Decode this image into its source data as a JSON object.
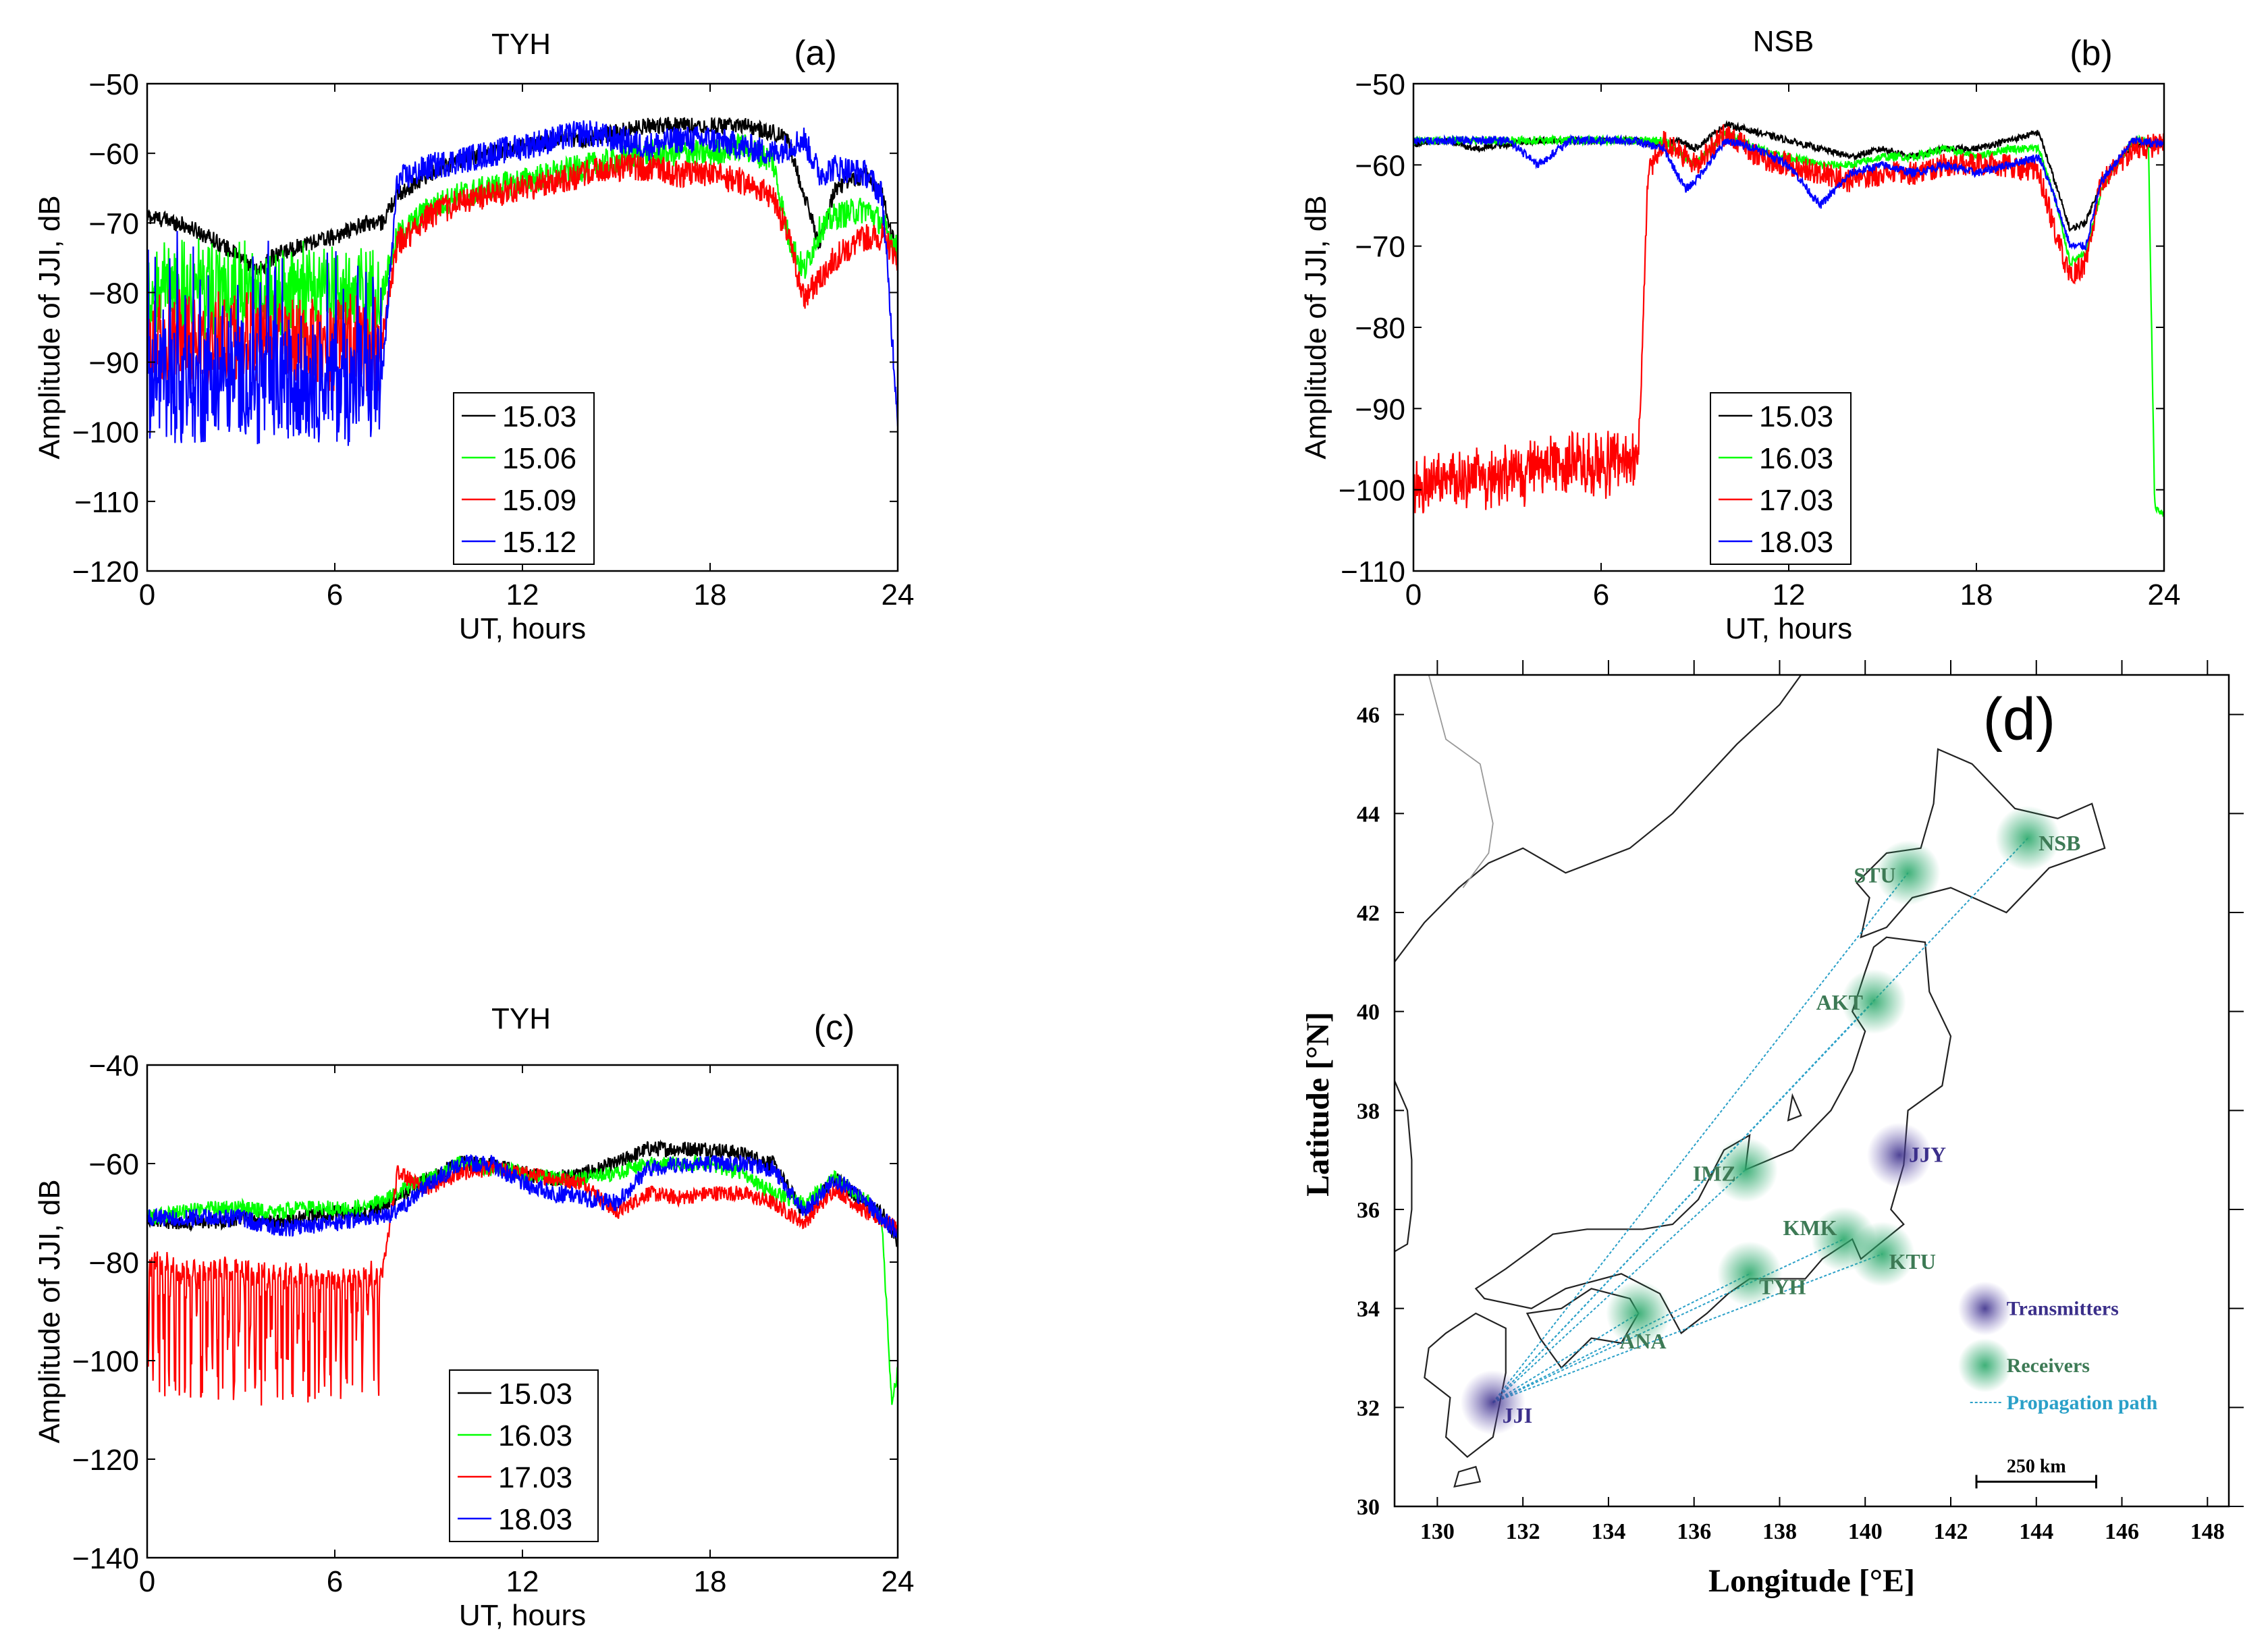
{
  "chart_data": [
    {
      "id": "a",
      "type": "line",
      "panel_label": "(a)",
      "title": "TYH",
      "xlabel": "UT, hours",
      "ylabel": "Amplitude of JJI, dB",
      "xlim": [
        0,
        24
      ],
      "ylim": [
        -120,
        -50
      ],
      "xticks": [
        0,
        6,
        12,
        18,
        24
      ],
      "yticks": [
        -50,
        -60,
        -70,
        -80,
        -90,
        -100,
        -110,
        -120
      ],
      "legend_position": "bottom-center",
      "series": [
        {
          "name": "15.03",
          "color": "#000000",
          "x": [
            0,
            1,
            2,
            3,
            3.5,
            4,
            5,
            6,
            7,
            7.5,
            8,
            9,
            10,
            11,
            12,
            13,
            14,
            15,
            16,
            17,
            18,
            19,
            20,
            20.5,
            21,
            21.5,
            22,
            23,
            23.5,
            24
          ],
          "y": [
            -69,
            -70,
            -72,
            -75,
            -77,
            -75,
            -73,
            -72,
            -70,
            -70,
            -66,
            -63,
            -61,
            -60,
            -59,
            -58,
            -58,
            -57,
            -56,
            -56,
            -56,
            -56,
            -57,
            -58,
            -66,
            -73,
            -65,
            -63,
            -66,
            -75
          ]
        },
        {
          "name": "15.06",
          "color": "#00ff00",
          "x": [
            0,
            7.5,
            8,
            9,
            10,
            11,
            12,
            13,
            14,
            15,
            16,
            17,
            18,
            19,
            20,
            20.5,
            21,
            21.5,
            22,
            23,
            23.5,
            24
          ],
          "y": [
            -80,
            -80,
            -72,
            -68,
            -66,
            -65,
            -64,
            -63,
            -62,
            -61,
            -60,
            -60,
            -60,
            -59,
            -61,
            -72,
            -77,
            -71,
            -69,
            -68,
            -70,
            -74
          ]
        },
        {
          "name": "15.09",
          "color": "#ff0000",
          "x": [
            0,
            7.5,
            8,
            9,
            10,
            11,
            12,
            13,
            14,
            15,
            16,
            17,
            18,
            19,
            20,
            20.5,
            21,
            21.5,
            22,
            23,
            23.5,
            24
          ],
          "y": [
            -87,
            -87,
            -73,
            -69,
            -67,
            -66,
            -65,
            -64,
            -63,
            -62,
            -62,
            -63,
            -63,
            -64,
            -66,
            -72,
            -81,
            -78,
            -75,
            -72,
            -72,
            -75
          ]
        },
        {
          "name": "15.12",
          "color": "#0000ff",
          "x": [
            0,
            7.5,
            8,
            9,
            10,
            11,
            12,
            13,
            14,
            15,
            16,
            17,
            18,
            19,
            20,
            21,
            21.5,
            22,
            23,
            23.5,
            24
          ],
          "y": [
            -93,
            -93,
            -64,
            -62,
            -61,
            -60,
            -59,
            -58,
            -57,
            -58,
            -59,
            -58,
            -58,
            -59,
            -60,
            -58,
            -63,
            -62,
            -63,
            -66,
            -98
          ]
        }
      ]
    },
    {
      "id": "b",
      "type": "line",
      "panel_label": "(b)",
      "title": "NSB",
      "xlabel": "UT, hours",
      "ylabel": "Amplitude of JJI, dB",
      "xlim": [
        0,
        24
      ],
      "ylim": [
        -110,
        -50
      ],
      "xticks": [
        0,
        6,
        12,
        18,
        24
      ],
      "yticks": [
        -50,
        -60,
        -70,
        -80,
        -90,
        -100,
        -110
      ],
      "legend_position": "bottom-center",
      "series": [
        {
          "name": "15.03",
          "color": "#000000",
          "x": [
            0,
            1,
            2,
            3,
            4,
            5,
            6,
            7,
            8,
            8.5,
            9,
            10,
            11,
            12,
            13,
            14,
            15,
            16,
            17,
            18,
            19,
            20,
            20.5,
            21,
            21.5,
            22,
            23,
            24
          ],
          "y": [
            -57.5,
            -57,
            -58,
            -57.5,
            -57,
            -57,
            -57,
            -57,
            -57.5,
            -57,
            -58,
            -55,
            -56,
            -57,
            -58,
            -59,
            -58,
            -59,
            -58,
            -58,
            -57,
            -56,
            -62,
            -68,
            -67,
            -62,
            -57.5,
            -57.5
          ]
        },
        {
          "name": "16.03",
          "color": "#00ff00",
          "x": [
            0,
            1,
            2,
            3,
            4,
            5,
            6,
            7,
            8,
            9,
            10,
            11,
            12,
            13,
            14,
            15,
            16,
            17,
            18,
            19,
            20,
            20.5,
            21,
            21.5,
            22,
            23,
            23.5,
            23.7,
            24
          ],
          "y": [
            -57,
            -57,
            -57,
            -57,
            -57,
            -57,
            -57,
            -57,
            -57,
            -60,
            -56,
            -58,
            -59,
            -60,
            -60,
            -59,
            -59,
            -58,
            -59,
            -58,
            -58,
            -64,
            -72,
            -71,
            -63,
            -57,
            -57,
            -102,
            -103
          ]
        },
        {
          "name": "17.03",
          "color": "#ff0000",
          "x": [
            0,
            1,
            2,
            3,
            4,
            5,
            6,
            7,
            7.2,
            7.5,
            8,
            9,
            10,
            11,
            12,
            13,
            14,
            15,
            16,
            17,
            18,
            19,
            20,
            20.5,
            21,
            21.5,
            22,
            23,
            24
          ],
          "y": [
            -100,
            -99,
            -98.5,
            -98,
            -97.5,
            -97,
            -97,
            -96,
            -96,
            -61,
            -57,
            -60,
            -56,
            -59,
            -60,
            -61,
            -62,
            -61,
            -61,
            -60,
            -60,
            -60,
            -61,
            -68,
            -74,
            -72,
            -62,
            -58,
            -57.5
          ]
        },
        {
          "name": "18.03",
          "color": "#0000ff",
          "x": [
            0,
            1,
            2,
            3,
            4,
            5,
            6,
            7,
            8,
            8.7,
            9,
            10,
            11,
            12,
            13,
            14,
            15,
            16,
            17,
            18,
            19,
            20,
            20.5,
            21,
            21.5,
            22,
            23,
            24
          ],
          "y": [
            -57,
            -57,
            -57,
            -57,
            -60,
            -57,
            -57,
            -57,
            -58,
            -63,
            -62,
            -57,
            -58,
            -60,
            -65,
            -61,
            -60,
            -61,
            -60,
            -61,
            -60,
            -59,
            -64,
            -70,
            -70,
            -62,
            -57,
            -57.5
          ]
        }
      ]
    },
    {
      "id": "c",
      "type": "line",
      "panel_label": "(c)",
      "title": "TYH",
      "xlabel": "UT, hours",
      "ylabel": "Amplitude of JJI, dB",
      "xlim": [
        0,
        24
      ],
      "ylim": [
        -140,
        -40
      ],
      "xticks": [
        0,
        6,
        12,
        18,
        24
      ],
      "yticks": [
        -40,
        -60,
        -80,
        -100,
        -120,
        -140
      ],
      "legend_position": "bottom-center",
      "series": [
        {
          "name": "15.03",
          "color": "#000000",
          "x": [
            0,
            1,
            2,
            3,
            4,
            5,
            6,
            7,
            8,
            9,
            10,
            11,
            12,
            13,
            14,
            15,
            16,
            17,
            18,
            19,
            20,
            21,
            22,
            23,
            23.5,
            24
          ],
          "y": [
            -71,
            -72,
            -72,
            -71,
            -72,
            -71,
            -70,
            -70,
            -67,
            -63,
            -60,
            -60,
            -62,
            -63,
            -62,
            -60,
            -57,
            -57,
            -57,
            -58,
            -60,
            -70,
            -63,
            -68,
            -70,
            -76
          ]
        },
        {
          "name": "16.03",
          "color": "#00ff00",
          "x": [
            0,
            1,
            2,
            3,
            4,
            5,
            6,
            7,
            8,
            9,
            10,
            11,
            12,
            13,
            14,
            15,
            16,
            17,
            18,
            19,
            20,
            21,
            22,
            23,
            23.5,
            23.8,
            24
          ],
          "y": [
            -71,
            -70,
            -69,
            -69,
            -70,
            -69,
            -69,
            -69,
            -66,
            -63,
            -60,
            -61,
            -62,
            -63,
            -63,
            -62,
            -60,
            -60,
            -60,
            -62,
            -66,
            -68,
            -63,
            -67,
            -72,
            -108,
            -102
          ]
        },
        {
          "name": "17.03",
          "color": "#ff0000",
          "x": [
            0,
            1,
            2,
            3,
            4,
            5,
            6,
            7,
            7.5,
            8,
            9,
            10,
            11,
            12,
            13,
            14,
            15,
            16,
            17,
            18,
            19,
            20,
            21,
            22,
            23,
            24
          ],
          "y": [
            -80,
            -82,
            -82,
            -81,
            -83,
            -83,
            -83,
            -83,
            -83,
            -62,
            -65,
            -62,
            -61,
            -62,
            -63,
            -64,
            -70,
            -66,
            -67,
            -66,
            -66,
            -68,
            -72,
            -65,
            -70,
            -73
          ]
        },
        {
          "name": "18.03",
          "color": "#0000ff",
          "x": [
            0,
            1,
            2,
            3,
            4,
            5,
            6,
            7,
            8,
            9,
            10,
            11,
            12,
            13,
            14,
            15,
            16,
            17,
            18,
            19,
            20,
            21,
            22,
            23,
            24
          ],
          "y": [
            -71,
            -71,
            -71,
            -71,
            -73,
            -73,
            -72,
            -71,
            -70,
            -64,
            -60,
            -60,
            -64,
            -66,
            -67,
            -68,
            -61,
            -60,
            -60,
            -60,
            -61,
            -70,
            -63,
            -68,
            -74
          ]
        }
      ]
    },
    {
      "id": "d",
      "type": "map",
      "panel_label": "(d)",
      "xlabel": "Longitude [°E]",
      "ylabel": "Latitude [°N]",
      "xlim": [
        129,
        148.5
      ],
      "ylim": [
        30,
        46.8
      ],
      "xticks": [
        130,
        132,
        134,
        136,
        138,
        140,
        142,
        144,
        146,
        148
      ],
      "yticks": [
        30,
        32,
        34,
        36,
        38,
        40,
        42,
        44,
        46
      ],
      "transmitters": [
        {
          "name": "JJI",
          "lon": 131.3,
          "lat": 32.1
        },
        {
          "name": "JJY",
          "lon": 140.8,
          "lat": 37.1
        }
      ],
      "receivers": [
        {
          "name": "NSB",
          "lon": 143.8,
          "lat": 43.5
        },
        {
          "name": "STU",
          "lon": 141.0,
          "lat": 42.8
        },
        {
          "name": "AKT",
          "lon": 140.2,
          "lat": 40.2
        },
        {
          "name": "IMZ",
          "lon": 137.2,
          "lat": 36.8
        },
        {
          "name": "KMK",
          "lon": 139.5,
          "lat": 35.4
        },
        {
          "name": "KTU",
          "lon": 140.4,
          "lat": 35.1
        },
        {
          "name": "TYH",
          "lon": 137.3,
          "lat": 34.7
        },
        {
          "name": "ANA",
          "lon": 134.7,
          "lat": 33.9
        }
      ],
      "legend": {
        "transmitters": "Transmitters",
        "receivers": "Receivers",
        "path": "Propagation path"
      },
      "scale_bar": "250 km"
    }
  ]
}
